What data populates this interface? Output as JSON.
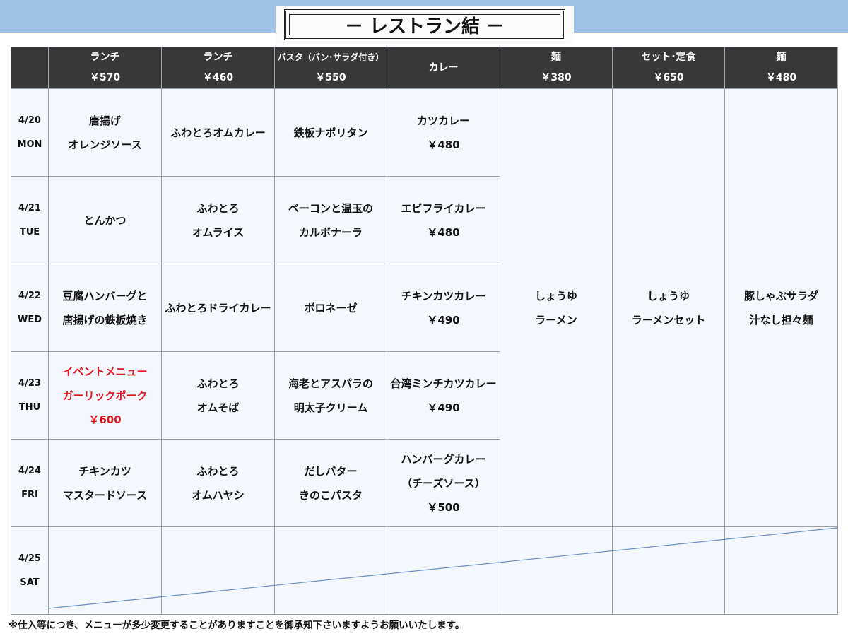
{
  "title": "－ レストラン結 －",
  "columns": [
    {
      "name": "",
      "price": ""
    },
    {
      "name": "ランチ",
      "price": "￥570"
    },
    {
      "name": "ランチ",
      "price": "￥460"
    },
    {
      "name": "パスタ（パン･サラダ付き）",
      "price": "￥550"
    },
    {
      "name": "カレー",
      "price": ""
    },
    {
      "name": "麺",
      "price": "￥380"
    },
    {
      "name": "セット･定食",
      "price": "￥650"
    },
    {
      "name": "麺",
      "price": "￥480"
    }
  ],
  "rows": [
    {
      "date": "4/20",
      "day": "MON",
      "cells": [
        [
          "唐揚げ",
          "オレンジソース"
        ],
        [
          "ふわとろオムカレー"
        ],
        [
          "鉄板ナポリタン"
        ],
        [
          "カツカレー",
          "￥480"
        ]
      ]
    },
    {
      "date": "4/21",
      "day": "TUE",
      "cells": [
        [
          "とんかつ"
        ],
        [
          "ふわとろ",
          "オムライス"
        ],
        [
          "ベーコンと温玉の",
          "カルボナーラ"
        ],
        [
          "エビフライカレー",
          "￥480"
        ]
      ]
    },
    {
      "date": "4/22",
      "day": "WED",
      "cells": [
        [
          "豆腐ハンバーグと",
          "唐揚げの鉄板焼き"
        ],
        [
          "ふわとろドライカレー"
        ],
        [
          "ボロネーゼ"
        ],
        [
          "チキンカツカレー",
          "￥490"
        ]
      ]
    },
    {
      "date": "4/23",
      "day": "THU",
      "cells": [
        [
          "イベントメニュー",
          "ガーリックポーク",
          "￥600"
        ],
        [
          "ふわとろ",
          "オムそば"
        ],
        [
          "海老とアスパラの",
          "明太子クリーム"
        ],
        [
          "台湾ミンチカツカレー",
          "￥490"
        ]
      ]
    },
    {
      "date": "4/24",
      "day": "FRI",
      "cells": [
        [
          "チキンカツ",
          "マスタードソース"
        ],
        [
          "ふわとろ",
          "オムハヤシ"
        ],
        [
          "だしバター",
          "きのこパスタ"
        ],
        [
          "ハンバーグカレー",
          "（チーズソース）",
          "￥500"
        ]
      ]
    },
    {
      "date": "4/25",
      "day": "SAT",
      "cells": []
    }
  ],
  "weekly": [
    [
      "しょうゆ",
      "ラーメン"
    ],
    [
      "しょうゆ",
      "ラーメンセット"
    ],
    [
      "豚しゃぶサラダ",
      "汁なし担々麺"
    ]
  ],
  "note": "※仕入等につき、メニューが多少変更することがありますことを御承知下さいますようお願いいたします。",
  "colors": {
    "header": "#383838",
    "band": "#9fc3e7",
    "cell": "#f4f7fc",
    "event": "#e0141e"
  }
}
